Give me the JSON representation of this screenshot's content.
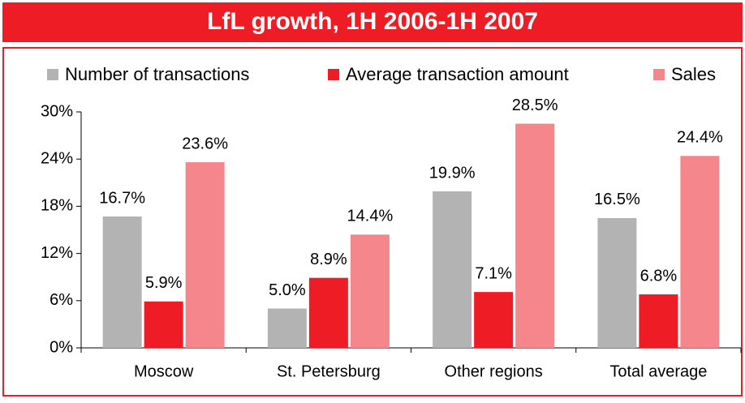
{
  "chart_data": {
    "type": "bar",
    "title": "LfL growth, 1H 2006-1H 2007",
    "categories": [
      "Moscow",
      "St. Petersburg",
      "Other regions",
      "Total average"
    ],
    "series": [
      {
        "name": "Number of transactions",
        "color": "#b3b3b3",
        "values": [
          16.7,
          5.0,
          19.9,
          16.5
        ],
        "value_labels": [
          "16.7%",
          "5.0%",
          "19.9%",
          "16.5%"
        ]
      },
      {
        "name": "Average transaction amount",
        "color": "#ee1c25",
        "values": [
          5.9,
          8.9,
          7.1,
          6.8
        ],
        "value_labels": [
          "5.9%",
          "8.9%",
          "7.1%",
          "6.8%"
        ]
      },
      {
        "name": "Sales",
        "color": "#f4868c",
        "values": [
          23.6,
          14.4,
          28.5,
          24.4
        ],
        "value_labels": [
          "23.6%",
          "14.4%",
          "28.5%",
          "24.4%"
        ]
      }
    ],
    "ylim": [
      0,
      30
    ],
    "yticks": [
      {
        "value": 0,
        "label": "0%"
      },
      {
        "value": 6,
        "label": "6%"
      },
      {
        "value": 12,
        "label": "12%"
      },
      {
        "value": 18,
        "label": "18%"
      },
      {
        "value": 24,
        "label": "24%"
      },
      {
        "value": 30,
        "label": "30%"
      }
    ],
    "legend": "top"
  }
}
